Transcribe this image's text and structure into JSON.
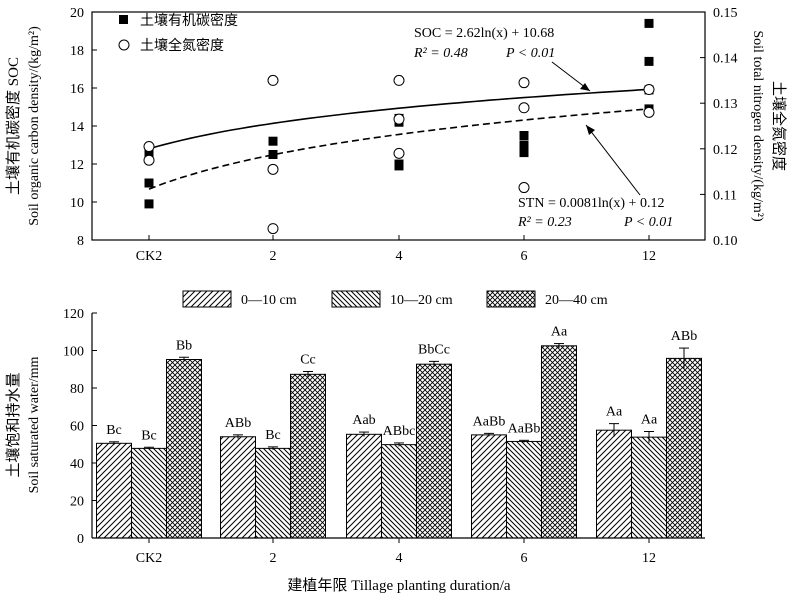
{
  "chart_data": [
    {
      "type": "scatter",
      "title": "",
      "x_categories": [
        "CK2",
        "2",
        "4",
        "6",
        "12"
      ],
      "xlabel": "",
      "ylabel_left": [
        "土壤有机碳密度 SOC",
        "Soil organic carbon density/(kg/m²)"
      ],
      "ylabel_right": [
        "土壤全氮密度",
        "Soil total nitrogen density/(kg/m²)"
      ],
      "ylim_left": [
        8,
        20
      ],
      "yticks_left": [
        8,
        10,
        12,
        14,
        16,
        18,
        20
      ],
      "ylim_right": [
        0.1,
        0.15
      ],
      "yticks_right": [
        "0.10",
        "0.11",
        "0.12",
        "0.13",
        "0.14",
        "0.15"
      ],
      "legend_position": "top-left",
      "series": [
        {
          "name": "土壤有机碳密度",
          "marker": "filled-square",
          "axis": "left",
          "points": [
            {
              "x": "CK2",
              "y": [
                12.6,
                11.0,
                9.9
              ]
            },
            {
              "x": "2",
              "y": [
                13.2,
                12.5
              ]
            },
            {
              "x": "4",
              "y": [
                14.4,
                14.2,
                12.0,
                11.9
              ]
            },
            {
              "x": "6",
              "y": [
                13.5,
                13.0,
                12.8,
                12.6
              ]
            },
            {
              "x": "12",
              "y": [
                19.4,
                17.4,
                15.9,
                14.9
              ]
            }
          ]
        },
        {
          "name": "土壤全氮密度",
          "marker": "open-circle",
          "axis": "right",
          "points": [
            {
              "x": "CK2",
              "y": [
                0.1205,
                0.1175
              ]
            },
            {
              "x": "2",
              "y": [
                0.135,
                0.1155,
                0.1025
              ]
            },
            {
              "x": "4",
              "y": [
                0.135,
                0.1265,
                0.119
              ]
            },
            {
              "x": "6",
              "y": [
                0.1345,
                0.129,
                0.1115
              ]
            },
            {
              "x": "12",
              "y": [
                0.133,
                0.128
              ]
            }
          ]
        }
      ],
      "fits": [
        {
          "style": "dashed",
          "axis": "left",
          "a": 2.62,
          "b": 10.68,
          "equation": "SOC = 2.62ln(x) + 10.68",
          "r2": "R² = 0.48",
          "p": "P < 0.01"
        },
        {
          "style": "solid",
          "axis": "right",
          "a": 0.0081,
          "b": 0.12,
          "equation": "STN = 0.0081ln(x) + 0.12",
          "r2": "R² = 0.23",
          "p": "P < 0.01"
        }
      ]
    },
    {
      "type": "bar",
      "title": "",
      "categories": [
        "CK2",
        "2",
        "4",
        "6",
        "12"
      ],
      "xlabel": "建植年限 Tillage planting duration/a",
      "ylabel": [
        "土壤饱和持水量",
        "Soil saturated water/mm"
      ],
      "ylim": [
        0,
        120
      ],
      "yticks": [
        0,
        20,
        40,
        60,
        80,
        100,
        120
      ],
      "legend_position": "top-center",
      "series": [
        {
          "name": "0—10 cm",
          "pattern": "diag-right",
          "values": [
            50.5,
            54.0,
            55.3,
            55.0,
            57.5
          ],
          "errors": [
            0.8,
            1.0,
            1.2,
            0.8,
            3.5
          ],
          "labels": [
            "Bc",
            "ABb",
            "Aab",
            "AaBb",
            "Aa"
          ]
        },
        {
          "name": "10—20 cm",
          "pattern": "diag-left",
          "values": [
            47.8,
            47.8,
            49.8,
            51.5,
            53.8
          ],
          "errors": [
            0.6,
            0.8,
            0.9,
            0.6,
            3.0
          ],
          "labels": [
            "Bc",
            "Bc",
            "ABbc",
            "AaBb",
            "Aa"
          ]
        },
        {
          "name": "20—40 cm",
          "pattern": "crosshatch",
          "values": [
            95.2,
            87.3,
            92.7,
            102.5,
            95.8
          ],
          "errors": [
            1.2,
            1.5,
            1.5,
            1.2,
            5.5
          ],
          "labels": [
            "Bb",
            "Cc",
            "BbCc",
            "Aa",
            "ABb"
          ]
        }
      ]
    }
  ]
}
